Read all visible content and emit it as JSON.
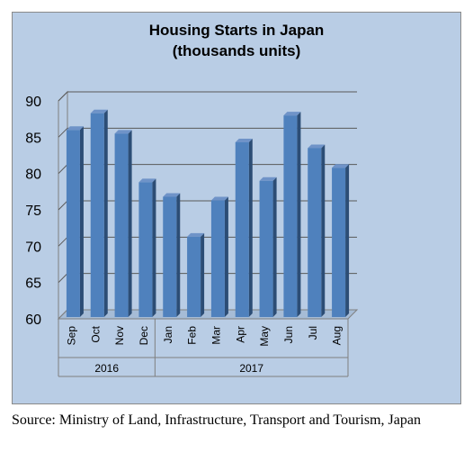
{
  "chart_data": {
    "type": "bar",
    "title_lines": [
      "Housing Starts in Japan",
      "(thousands units)"
    ],
    "categories": [
      "Sep",
      "Oct",
      "Nov",
      "Dec",
      "Jan",
      "Feb",
      "Mar",
      "Apr",
      "May",
      "Jun",
      "Jul",
      "Aug"
    ],
    "year_groups": [
      {
        "label": "2016",
        "count": 4
      },
      {
        "label": "2017",
        "count": 8
      }
    ],
    "values": [
      85.5,
      87.8,
      85.0,
      78.3,
      76.3,
      70.8,
      75.8,
      83.8,
      78.5,
      87.5,
      83.0,
      80.3
    ],
    "ylim": [
      60,
      90
    ],
    "yticks": [
      60,
      65,
      70,
      75,
      80,
      85,
      90
    ],
    "grid": true,
    "bar_color": "#4f81bd",
    "background_color": "#b9cde5"
  },
  "source_note": "Source: Ministry of Land, Infrastructure, Transport and Tourism, Japan"
}
